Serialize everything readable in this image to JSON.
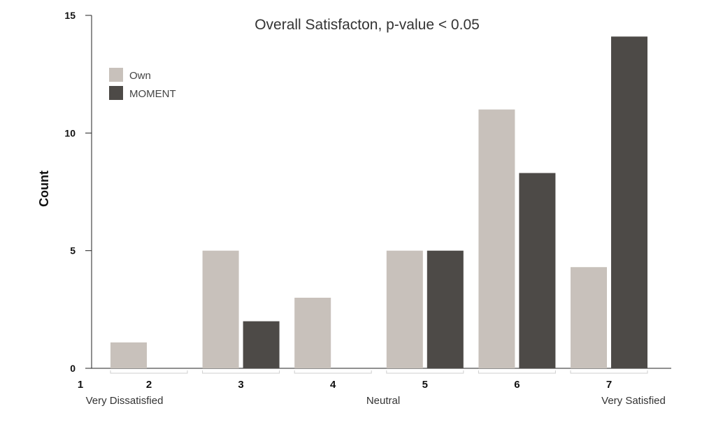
{
  "chart_data": {
    "type": "bar",
    "title": "Overall Satisfacton, p-value < 0.05",
    "xlabel": "",
    "ylabel": "Count",
    "ylim": [
      0,
      15
    ],
    "yticks": [
      "0",
      "5",
      "10",
      "15"
    ],
    "categories": [
      "2",
      "3",
      "4",
      "5",
      "6",
      "7"
    ],
    "x_axis_start_label": "1",
    "anchor_labels": {
      "left": "Very Dissatisfied",
      "middle": "Neutral",
      "right": "Very Satisfied"
    },
    "series": [
      {
        "name": "Own",
        "color": "#c8c1bb",
        "values": [
          1.1,
          5,
          3,
          5,
          11,
          4.3
        ]
      },
      {
        "name": "MOMENT",
        "color": "#4d4a47",
        "values": [
          0,
          2,
          0,
          5,
          8.3,
          14.1
        ]
      }
    ],
    "grid": false,
    "legend_position": "top-left"
  }
}
